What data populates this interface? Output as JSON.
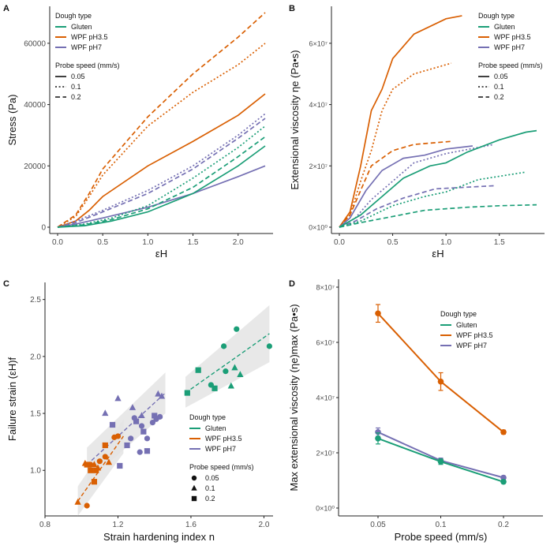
{
  "colors": {
    "gluten": "#1b9e77",
    "wpf35": "#d95f02",
    "wpf7": "#7570b3",
    "band": "#e4e4e4",
    "axis": "#222222",
    "tick": "#4d4d4d"
  },
  "chart_data": [
    {
      "panel": "A",
      "type": "line",
      "xlabel": "εH",
      "ylabel": "Stress (Pa)",
      "xlim": [
        0,
        2.3
      ],
      "ylim": [
        0,
        70000
      ],
      "xticks": [
        0,
        0.5,
        1,
        1.5,
        2
      ],
      "xtick_labels": [
        "0.0",
        "0.5",
        "1.0",
        "1.5",
        "2.0"
      ],
      "yticks": [
        0,
        20000,
        40000,
        60000
      ],
      "ytick_labels": [
        "0",
        "20000",
        "40000",
        "60000"
      ],
      "legend_groups": [
        {
          "title": "Dough type",
          "kind": "color",
          "entries": [
            {
              "label": "Gluten",
              "color": "#1b9e77"
            },
            {
              "label": "WPF pH3.5",
              "color": "#d95f02"
            },
            {
              "label": "WPF pH7",
              "color": "#7570b3"
            }
          ]
        },
        {
          "title": "Probe speed (mm/s)",
          "kind": "linetype",
          "entries": [
            {
              "label": "0.05",
              "dash": "solid"
            },
            {
              "label": "0.1",
              "dash": "dotted"
            },
            {
              "label": "0.2",
              "dash": "dashed"
            }
          ]
        }
      ],
      "series": [
        {
          "name": "WPF pH3.5 0.2",
          "dough": "WPF pH3.5",
          "speed": "0.2",
          "color": "#d95f02",
          "dash": "dashed",
          "x": [
            0,
            0.2,
            0.35,
            0.5,
            1,
            1.5,
            2,
            2.3
          ],
          "y": [
            0,
            4000,
            11000,
            19000,
            36000,
            50000,
            62000,
            70000
          ]
        },
        {
          "name": "WPF pH3.5 0.1",
          "dough": "WPF pH3.5",
          "speed": "0.1",
          "color": "#d95f02",
          "dash": "dotted",
          "x": [
            0,
            0.2,
            0.35,
            0.5,
            1,
            1.5,
            2,
            2.3
          ],
          "y": [
            0,
            3500,
            10000,
            17000,
            33000,
            44000,
            53000,
            60000
          ]
        },
        {
          "name": "WPF pH3.5 0.05",
          "dough": "WPF pH3.5",
          "speed": "0.05",
          "color": "#d95f02",
          "dash": "solid",
          "x": [
            0,
            0.2,
            0.35,
            0.5,
            1,
            1.5,
            2,
            2.3
          ],
          "y": [
            0,
            2000,
            5500,
            10000,
            20000,
            28000,
            36500,
            43500
          ]
        },
        {
          "name": "WPF pH7 0.2",
          "dough": "WPF pH7",
          "speed": "0.2",
          "color": "#7570b3",
          "dash": "dashed",
          "x": [
            0,
            0.2,
            0.5,
            1,
            1.5,
            2,
            2.3
          ],
          "y": [
            0,
            1500,
            5000,
            11000,
            19000,
            29000,
            35500
          ]
        },
        {
          "name": "WPF pH7 0.1",
          "dough": "WPF pH7",
          "speed": "0.1",
          "color": "#7570b3",
          "dash": "dotted",
          "x": [
            0,
            0.2,
            0.5,
            1,
            1.5,
            2,
            2.3
          ],
          "y": [
            0,
            2000,
            5500,
            12000,
            20000,
            30000,
            37000
          ]
        },
        {
          "name": "WPF pH7 0.05",
          "dough": "WPF pH7",
          "speed": "0.05",
          "color": "#7570b3",
          "dash": "solid",
          "x": [
            0,
            0.2,
            0.5,
            1,
            1.5,
            2,
            2.3
          ],
          "y": [
            0,
            1000,
            3000,
            6500,
            11000,
            16500,
            20000
          ]
        },
        {
          "name": "Gluten 0.1",
          "dough": "Gluten",
          "speed": "0.1",
          "color": "#1b9e77",
          "dash": "dotted",
          "x": [
            0,
            0.3,
            0.6,
            1,
            1.5,
            2,
            2.3
          ],
          "y": [
            0,
            1000,
            3000,
            7000,
            16000,
            26000,
            33000
          ]
        },
        {
          "name": "Gluten 0.2",
          "dough": "Gluten",
          "speed": "0.2",
          "color": "#1b9e77",
          "dash": "dashed",
          "x": [
            0,
            0.3,
            0.6,
            1,
            1.5,
            2,
            2.3
          ],
          "y": [
            0,
            800,
            2500,
            6000,
            13000,
            23000,
            29500
          ]
        },
        {
          "name": "Gluten 0.05",
          "dough": "Gluten",
          "speed": "0.05",
          "color": "#1b9e77",
          "dash": "solid",
          "x": [
            0,
            0.3,
            0.6,
            1,
            1.5,
            2,
            2.3
          ],
          "y": [
            0,
            500,
            2000,
            5000,
            11000,
            20000,
            26500
          ]
        }
      ]
    },
    {
      "panel": "B",
      "type": "line",
      "xlabel": "εH",
      "ylabel": "Extensional viscosity ηe (Pa•s)",
      "xlim": [
        0,
        1.85
      ],
      "ylim": [
        0,
        70000000
      ],
      "xticks": [
        0,
        0.5,
        1,
        1.5
      ],
      "xtick_labels": [
        "0.0",
        "0.5",
        "1.0",
        "1.5"
      ],
      "yticks": [
        0,
        20000000,
        40000000,
        60000000
      ],
      "ytick_labels": [
        "0×10⁰",
        "2×10⁷",
        "4×10⁷",
        "6×10⁷"
      ],
      "legend_groups": [
        {
          "title": "Dough type",
          "kind": "color",
          "entries": [
            {
              "label": "Gluten",
              "color": "#1b9e77"
            },
            {
              "label": "WPF pH3.5",
              "color": "#d95f02"
            },
            {
              "label": "WPF pH7",
              "color": "#7570b3"
            }
          ]
        },
        {
          "title": "Probe speed (mm/s)",
          "kind": "linetype",
          "entries": [
            {
              "label": "0.05",
              "dash": "solid"
            },
            {
              "label": "0.1",
              "dash": "dotted"
            },
            {
              "label": "0.2",
              "dash": "dashed"
            }
          ]
        }
      ],
      "series": [
        {
          "name": "WPF pH3.5 0.05",
          "dough": "WPF pH3.5",
          "speed": "0.05",
          "color": "#d95f02",
          "dash": "solid",
          "x": [
            0,
            0.1,
            0.2,
            0.3,
            0.4,
            0.5,
            0.7,
            1,
            1.15
          ],
          "y": [
            0,
            5000000,
            20000000,
            38000000,
            45000000,
            55000000,
            63000000,
            68000000,
            69000000
          ]
        },
        {
          "name": "WPF pH3.5 0.1",
          "dough": "WPF pH3.5",
          "speed": "0.1",
          "color": "#d95f02",
          "dash": "dotted",
          "x": [
            0,
            0.1,
            0.2,
            0.3,
            0.4,
            0.5,
            0.7,
            1.05
          ],
          "y": [
            0,
            4000000,
            15000000,
            25000000,
            38000000,
            45000000,
            50000000,
            53500000
          ]
        },
        {
          "name": "WPF pH3.5 0.2",
          "dough": "WPF pH3.5",
          "speed": "0.2",
          "color": "#d95f02",
          "dash": "dashed",
          "x": [
            0,
            0.1,
            0.2,
            0.3,
            0.5,
            0.7,
            1.05
          ],
          "y": [
            0,
            4000000,
            12000000,
            20000000,
            25000000,
            27000000,
            28000000
          ]
        },
        {
          "name": "WPF pH7 0.05",
          "dough": "WPF pH7",
          "speed": "0.05",
          "color": "#7570b3",
          "dash": "solid",
          "x": [
            0,
            0.1,
            0.25,
            0.4,
            0.6,
            0.8,
            1.0,
            1.25
          ],
          "y": [
            0,
            3000000,
            12000000,
            18500000,
            22500000,
            23500000,
            25500000,
            26500000
          ]
        },
        {
          "name": "WPF pH7 0.1",
          "dough": "WPF pH7",
          "speed": "0.1",
          "color": "#7570b3",
          "dash": "dotted",
          "x": [
            0,
            0.15,
            0.3,
            0.5,
            0.7,
            1.0,
            1.45
          ],
          "y": [
            0,
            3000000,
            9000000,
            15000000,
            21000000,
            24000000,
            27000000
          ]
        },
        {
          "name": "WPF pH7 0.2",
          "dough": "WPF pH7",
          "speed": "0.2",
          "color": "#7570b3",
          "dash": "dashed",
          "x": [
            0,
            0.15,
            0.35,
            0.6,
            0.9,
            1.45
          ],
          "y": [
            0,
            2000000,
            6000000,
            9500000,
            12500000,
            13500000
          ]
        },
        {
          "name": "Gluten 0.05",
          "dough": "Gluten",
          "speed": "0.05",
          "color": "#1b9e77",
          "dash": "solid",
          "x": [
            0,
            0.2,
            0.4,
            0.6,
            0.85,
            1.0,
            1.2,
            1.5,
            1.75,
            1.85
          ],
          "y": [
            0,
            4000000,
            10000000,
            16000000,
            20000000,
            21000000,
            24500000,
            28500000,
            31000000,
            31500000
          ]
        },
        {
          "name": "Gluten 0.1",
          "dough": "Gluten",
          "speed": "0.1",
          "color": "#1b9e77",
          "dash": "dotted",
          "x": [
            0,
            0.2,
            0.5,
            0.8,
            1.0,
            1.3,
            1.75
          ],
          "y": [
            0,
            2000000,
            7000000,
            10000000,
            11500000,
            15500000,
            18000000
          ]
        },
        {
          "name": "Gluten 0.2",
          "dough": "Gluten",
          "speed": "0.2",
          "color": "#1b9e77",
          "dash": "dashed",
          "x": [
            0,
            0.2,
            0.5,
            0.8,
            1.2,
            1.5,
            1.85
          ],
          "y": [
            0,
            1500000,
            3500000,
            5500000,
            6500000,
            7000000,
            7300000
          ]
        }
      ]
    },
    {
      "panel": "C",
      "type": "scatter",
      "xlabel": "Strain hardening index n",
      "ylabel": "Failure strain (εH)f",
      "xlim": [
        0.8,
        2.05
      ],
      "ylim": [
        0.6,
        2.65
      ],
      "xticks": [
        0.8,
        1.2,
        1.6,
        2.0
      ],
      "xtick_labels": [
        "0.8",
        "1.2",
        "1.6",
        "2.0"
      ],
      "yticks": [
        1.0,
        1.5,
        2.0,
        2.5
      ],
      "ytick_labels": [
        "1.0",
        "1.5",
        "2.0",
        "2.5"
      ],
      "legend_groups": [
        {
          "title": "Dough type",
          "kind": "color",
          "entries": [
            {
              "label": "Gluten",
              "color": "#1b9e77"
            },
            {
              "label": "WPF pH3.5",
              "color": "#d95f02"
            },
            {
              "label": "WPF pH7",
              "color": "#7570b3"
            }
          ]
        },
        {
          "title": "Probe speed (mm/s)",
          "kind": "shape",
          "entries": [
            {
              "label": "0.05",
              "shape": "circle"
            },
            {
              "label": "0.1",
              "shape": "triangle"
            },
            {
              "label": "0.2",
              "shape": "square"
            }
          ]
        }
      ],
      "fits": [
        {
          "group": "Gluten",
          "color": "#1b9e77",
          "x": [
            1.57,
            2.03
          ],
          "y": [
            1.68,
            2.2
          ],
          "band_lower": [
            1.55,
            1.95
          ],
          "band_upper": [
            1.82,
            2.45
          ]
        },
        {
          "group": "WPF pH3.5",
          "color": "#d95f02",
          "x": [
            0.98,
            1.23
          ],
          "y": [
            0.73,
            1.3
          ],
          "band_lower": [
            0.6,
            1.15
          ],
          "band_upper": [
            0.86,
            1.45
          ]
        },
        {
          "group": "WPF pH7",
          "color": "#7570b3",
          "x": [
            1.03,
            1.46
          ],
          "y": [
            1.05,
            1.68
          ],
          "band_lower": [
            0.9,
            1.5
          ],
          "band_upper": [
            1.2,
            1.86
          ]
        }
      ],
      "points": [
        {
          "group": "Gluten",
          "speed": "0.05",
          "x": [
            1.78,
            1.85,
            1.79,
            2.03,
            1.71
          ],
          "y": [
            2.09,
            2.24,
            1.87,
            2.09,
            1.75
          ]
        },
        {
          "group": "Gluten",
          "speed": "0.1",
          "x": [
            1.84,
            1.87,
            1.82
          ],
          "y": [
            1.9,
            1.84,
            1.74
          ]
        },
        {
          "group": "Gluten",
          "speed": "0.2",
          "x": [
            1.64,
            1.58,
            1.73
          ],
          "y": [
            1.88,
            1.68,
            1.72
          ]
        },
        {
          "group": "WPF pH3.5",
          "speed": "0.05",
          "x": [
            1.18,
            1.2,
            1.1,
            1.13,
            1.05,
            1.03
          ],
          "y": [
            1.29,
            1.3,
            1.08,
            1.12,
            1.05,
            0.69
          ]
        },
        {
          "group": "WPF pH3.5",
          "speed": "0.1",
          "x": [
            0.98,
            1.07,
            1.09,
            1.02,
            1.15
          ],
          "y": [
            0.72,
            1.05,
            1.02,
            1.06,
            1.07
          ]
        },
        {
          "group": "WPF pH3.5",
          "speed": "0.2",
          "x": [
            1.03,
            1.05,
            1.07,
            1.08,
            1.13
          ],
          "y": [
            1.05,
            1.0,
            0.9,
            1.0,
            1.22
          ]
        },
        {
          "group": "WPF pH7",
          "speed": "0.05",
          "x": [
            1.29,
            1.33,
            1.36,
            1.39,
            1.41,
            1.43,
            1.32,
            1.27
          ],
          "y": [
            1.46,
            1.39,
            1.28,
            1.42,
            1.45,
            1.47,
            1.16,
            1.28
          ]
        },
        {
          "group": "WPF pH7",
          "speed": "0.1",
          "x": [
            1.2,
            1.28,
            1.42,
            1.44,
            1.13,
            1.33
          ],
          "y": [
            1.63,
            1.55,
            1.67,
            1.65,
            1.5,
            1.48
          ]
        },
        {
          "group": "WPF pH7",
          "speed": "0.2",
          "x": [
            1.17,
            1.3,
            1.25,
            1.36,
            1.4,
            1.21,
            1.34
          ],
          "y": [
            1.4,
            1.43,
            1.22,
            1.17,
            1.48,
            1.04,
            1.34
          ]
        }
      ]
    },
    {
      "panel": "D",
      "type": "line",
      "xlabel": "Probe speed (mm/s)",
      "ylabel": "Max extensional viscosity (ηe)max (Pa•s)",
      "categories": [
        "0.05",
        "0.1",
        "0.2"
      ],
      "ylim": [
        0,
        80000000
      ],
      "yticks": [
        0,
        20000000,
        40000000,
        60000000,
        80000000
      ],
      "ytick_labels": [
        "0×10⁰",
        "2×10⁷",
        "4×10⁷",
        "6×10⁷",
        "8×10⁷"
      ],
      "legend_groups": [
        {
          "title": "Dough type",
          "kind": "color",
          "entries": [
            {
              "label": "Gluten",
              "color": "#1b9e77"
            },
            {
              "label": "WPF pH3.5",
              "color": "#d95f02"
            },
            {
              "label": "WPF pH7",
              "color": "#7570b3"
            }
          ]
        }
      ],
      "series": [
        {
          "name": "WPF pH3.5",
          "color": "#d95f02",
          "values": [
            70500000,
            45800000,
            27500000
          ],
          "errors": [
            3200000,
            3200000,
            700000
          ]
        },
        {
          "name": "WPF pH7",
          "color": "#7570b3",
          "values": [
            27500000,
            17200000,
            11000000
          ],
          "errors": [
            1500000,
            900000,
            600000
          ]
        },
        {
          "name": "Gluten",
          "color": "#1b9e77",
          "values": [
            25200000,
            16800000,
            9500000
          ],
          "errors": [
            2000000,
            1000000,
            600000
          ]
        }
      ]
    }
  ]
}
